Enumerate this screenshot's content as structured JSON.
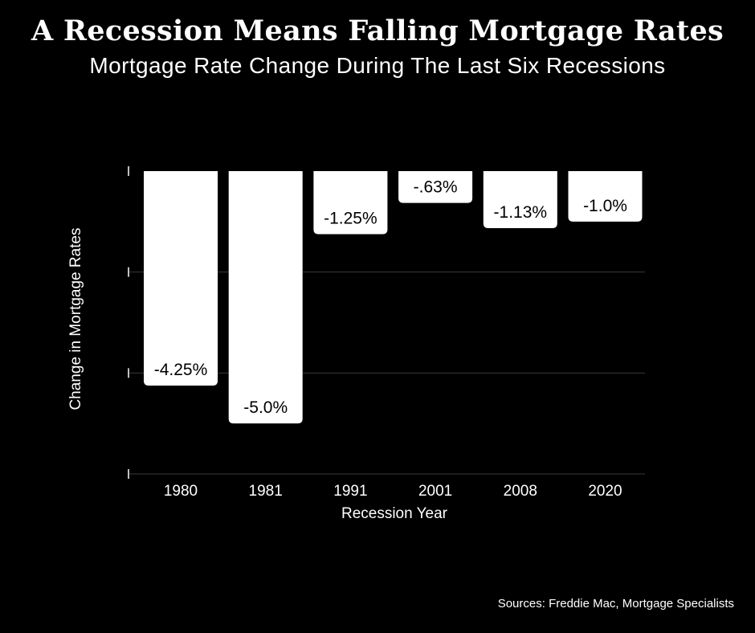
{
  "title": "A Recession Means Falling Mortgage Rates",
  "subtitle": "Mortgage Rate Change During The Last Six Recessions",
  "source": "Sources: Freddie Mac, Mortgage Specialists",
  "colors": {
    "background": "#000000",
    "bar": "#ffffff",
    "bar_label": "#000000",
    "grid": "#3a3a3a"
  },
  "chart_data": {
    "type": "bar",
    "title": "A Recession Means Falling Mortgage Rates",
    "subtitle": "Mortgage Rate Change During The Last Six Recessions",
    "xlabel": "Recession Year",
    "ylabel": "Change in Mortgage Rates",
    "categories": [
      "1980",
      "1981",
      "1991",
      "2001",
      "2008",
      "2020"
    ],
    "values": [
      -4.25,
      -5.0,
      -1.25,
      -0.63,
      -1.13,
      -1.0
    ],
    "value_labels": [
      "-4.25%",
      "-5.0%",
      "-1.25%",
      "-.63%",
      "-1.13%",
      "-1.0%"
    ],
    "ylim": [
      -6,
      0
    ],
    "y_ticks": [
      0,
      -2,
      -4,
      -6
    ],
    "grid": true,
    "legend": "none"
  }
}
